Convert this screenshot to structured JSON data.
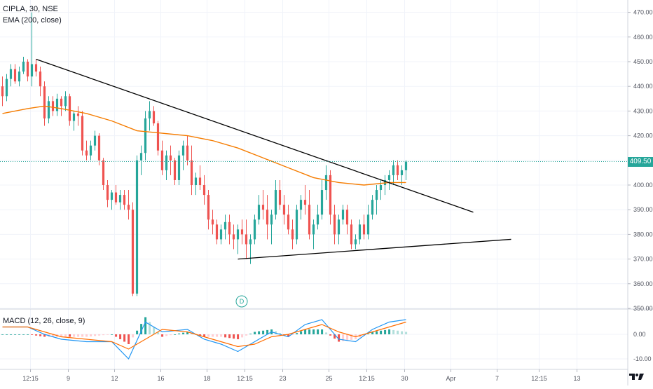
{
  "header": {
    "symbol_line": "CIPLA, 30, NSE",
    "ema_label": "EMA (200, close)",
    "macd_label": "MACD (12, 26, close, 9)"
  },
  "colors": {
    "up": "#26a69a",
    "down": "#ef5350",
    "ema": "#f57c00",
    "macd_line": "#2196f3",
    "signal_line": "#ff6d00",
    "trendline": "#000000",
    "price_line": "#26a69a"
  },
  "last_price": "409.50",
  "dividend_marker": "D",
  "chart_data": {
    "type": "candlestick",
    "symbol": "CIPLA",
    "interval": "30",
    "exchange": "NSE",
    "price_axis": {
      "ticks": [
        350,
        360,
        370,
        380,
        390,
        400,
        410,
        420,
        430,
        440,
        450,
        460,
        470
      ],
      "tick_labels": [
        "350.00",
        "360.00",
        "370.00",
        "380.00",
        "390.00",
        "400.00",
        "410.00",
        "420.00",
        "430.00",
        "440.00",
        "450.00",
        "460.00",
        "470.00"
      ],
      "range": [
        350,
        475
      ]
    },
    "time_axis": {
      "labels": [
        "12:15",
        "9",
        "12",
        "16",
        "18",
        "12:15",
        "23",
        "25",
        "12:15",
        "30",
        "Apr",
        "7",
        "12:15",
        "13"
      ],
      "label_bar_index": [
        7,
        16,
        27,
        38,
        49,
        58,
        67,
        78,
        87,
        96,
        107,
        118,
        128,
        137
      ]
    },
    "macd_axis": {
      "ticks": [
        0,
        -10
      ],
      "tick_labels": [
        "0.00",
        "-10.00"
      ],
      "range": [
        -14,
        10
      ]
    },
    "trendlines": [
      {
        "name": "upper",
        "from": [
          8,
          451
        ],
        "to": [
          112,
          389
        ]
      },
      {
        "name": "lower",
        "from": [
          56,
          370
        ],
        "to": [
          121,
          378
        ]
      }
    ],
    "ohlc": [
      [
        440,
        444,
        432,
        436
      ],
      [
        436,
        445,
        434,
        443
      ],
      [
        443,
        449,
        440,
        447
      ],
      [
        447,
        449,
        441,
        442
      ],
      [
        442,
        448,
        440,
        446
      ],
      [
        446,
        452,
        445,
        450
      ],
      [
        450,
        451,
        442,
        444
      ],
      [
        444,
        470,
        440,
        449
      ],
      [
        449,
        451,
        444,
        446
      ],
      [
        446,
        448,
        436,
        440
      ],
      [
        440,
        442,
        424,
        427
      ],
      [
        427,
        436,
        425,
        434
      ],
      [
        434,
        436,
        428,
        430
      ],
      [
        430,
        437,
        428,
        435
      ],
      [
        435,
        436,
        428,
        432
      ],
      [
        432,
        438,
        430,
        436
      ],
      [
        436,
        437,
        424,
        426
      ],
      [
        426,
        430,
        422,
        429
      ],
      [
        429,
        432,
        424,
        428
      ],
      [
        428,
        430,
        412,
        414
      ],
      [
        414,
        418,
        410,
        412
      ],
      [
        412,
        418,
        410,
        416
      ],
      [
        416,
        422,
        414,
        420
      ],
      [
        420,
        421,
        408,
        410
      ],
      [
        410,
        411,
        398,
        400
      ],
      [
        400,
        402,
        391,
        394
      ],
      [
        394,
        398,
        390,
        397
      ],
      [
        397,
        400,
        392,
        393
      ],
      [
        393,
        398,
        390,
        396
      ],
      [
        396,
        398,
        390,
        392
      ],
      [
        392,
        398,
        386,
        390
      ],
      [
        390,
        393,
        355,
        356
      ],
      [
        356,
        412,
        355,
        410
      ],
      [
        410,
        416,
        404,
        413
      ],
      [
        413,
        430,
        410,
        427
      ],
      [
        427,
        434,
        422,
        430
      ],
      [
        430,
        432,
        424,
        425
      ],
      [
        425,
        426,
        412,
        414
      ],
      [
        414,
        418,
        404,
        406
      ],
      [
        406,
        414,
        402,
        412
      ],
      [
        412,
        416,
        404,
        410
      ],
      [
        410,
        411,
        400,
        402
      ],
      [
        402,
        414,
        400,
        412
      ],
      [
        412,
        418,
        406,
        416
      ],
      [
        416,
        420,
        408,
        410
      ],
      [
        410,
        416,
        396,
        400
      ],
      [
        400,
        405,
        396,
        403
      ],
      [
        403,
        408,
        398,
        400
      ],
      [
        400,
        404,
        392,
        396
      ],
      [
        396,
        398,
        382,
        386
      ],
      [
        386,
        390,
        380,
        384
      ],
      [
        384,
        386,
        376,
        378
      ],
      [
        378,
        384,
        376,
        382
      ],
      [
        382,
        388,
        378,
        385
      ],
      [
        385,
        388,
        376,
        380
      ],
      [
        380,
        384,
        374,
        378
      ],
      [
        378,
        384,
        372,
        382
      ],
      [
        382,
        386,
        376,
        380
      ],
      [
        380,
        386,
        370,
        376
      ],
      [
        376,
        380,
        368,
        378
      ],
      [
        378,
        388,
        376,
        386
      ],
      [
        386,
        396,
        384,
        392
      ],
      [
        392,
        398,
        386,
        390
      ],
      [
        390,
        396,
        378,
        384
      ],
      [
        384,
        390,
        376,
        388
      ],
      [
        388,
        402,
        386,
        398
      ],
      [
        398,
        402,
        390,
        392
      ],
      [
        392,
        396,
        384,
        388
      ],
      [
        388,
        392,
        380,
        382
      ],
      [
        382,
        386,
        374,
        378
      ],
      [
        378,
        392,
        376,
        390
      ],
      [
        390,
        396,
        386,
        394
      ],
      [
        394,
        400,
        388,
        392
      ],
      [
        392,
        398,
        378,
        380
      ],
      [
        380,
        386,
        374,
        384
      ],
      [
        384,
        392,
        382,
        388
      ],
      [
        388,
        402,
        386,
        398
      ],
      [
        398,
        408,
        394,
        404
      ],
      [
        404,
        406,
        384,
        388
      ],
      [
        388,
        392,
        376,
        380
      ],
      [
        380,
        388,
        376,
        386
      ],
      [
        386,
        392,
        384,
        390
      ],
      [
        390,
        392,
        380,
        384
      ],
      [
        384,
        386,
        374,
        376
      ],
      [
        376,
        380,
        374,
        378
      ],
      [
        378,
        386,
        376,
        384
      ],
      [
        384,
        388,
        378,
        380
      ],
      [
        380,
        392,
        378,
        388
      ],
      [
        388,
        396,
        386,
        394
      ],
      [
        394,
        400,
        388,
        398
      ],
      [
        398,
        402,
        394,
        400
      ],
      [
        400,
        404,
        396,
        402
      ],
      [
        402,
        406,
        398,
        404
      ],
      [
        404,
        410,
        400,
        408
      ],
      [
        408,
        410,
        402,
        404
      ],
      [
        404,
        408,
        400,
        406
      ],
      [
        406,
        410,
        402,
        409.5
      ]
    ],
    "ema_200": [
      [
        0,
        429
      ],
      [
        6,
        431
      ],
      [
        10,
        432
      ],
      [
        14,
        431
      ],
      [
        20,
        429
      ],
      [
        26,
        426
      ],
      [
        32,
        422
      ],
      [
        38,
        421
      ],
      [
        44,
        420
      ],
      [
        50,
        418
      ],
      [
        56,
        415
      ],
      [
        62,
        411
      ],
      [
        68,
        407
      ],
      [
        74,
        403
      ],
      [
        80,
        401
      ],
      [
        86,
        400
      ],
      [
        92,
        401
      ],
      [
        96,
        401
      ]
    ],
    "macd": {
      "macd": [
        [
          0,
          3
        ],
        [
          6,
          3
        ],
        [
          10,
          0
        ],
        [
          14,
          -2
        ],
        [
          20,
          -3
        ],
        [
          26,
          -3
        ],
        [
          30,
          -10
        ],
        [
          34,
          5
        ],
        [
          38,
          1
        ],
        [
          44,
          2
        ],
        [
          48,
          -2
        ],
        [
          52,
          -4
        ],
        [
          56,
          -7
        ],
        [
          60,
          -3
        ],
        [
          64,
          1
        ],
        [
          68,
          -1
        ],
        [
          72,
          4
        ],
        [
          76,
          6
        ],
        [
          80,
          -2
        ],
        [
          84,
          -3
        ],
        [
          88,
          2
        ],
        [
          92,
          5
        ],
        [
          96,
          6
        ]
      ],
      "signal": [
        [
          0,
          3
        ],
        [
          6,
          3
        ],
        [
          10,
          1
        ],
        [
          14,
          -1
        ],
        [
          20,
          -2
        ],
        [
          26,
          -3
        ],
        [
          30,
          -6
        ],
        [
          34,
          -2
        ],
        [
          38,
          2
        ],
        [
          44,
          1
        ],
        [
          48,
          -1
        ],
        [
          52,
          -3
        ],
        [
          56,
          -5
        ],
        [
          60,
          -4
        ],
        [
          64,
          -1
        ],
        [
          68,
          0
        ],
        [
          72,
          2
        ],
        [
          76,
          4
        ],
        [
          80,
          1
        ],
        [
          84,
          -1
        ],
        [
          88,
          1
        ],
        [
          92,
          3
        ],
        [
          96,
          5
        ]
      ]
    }
  }
}
